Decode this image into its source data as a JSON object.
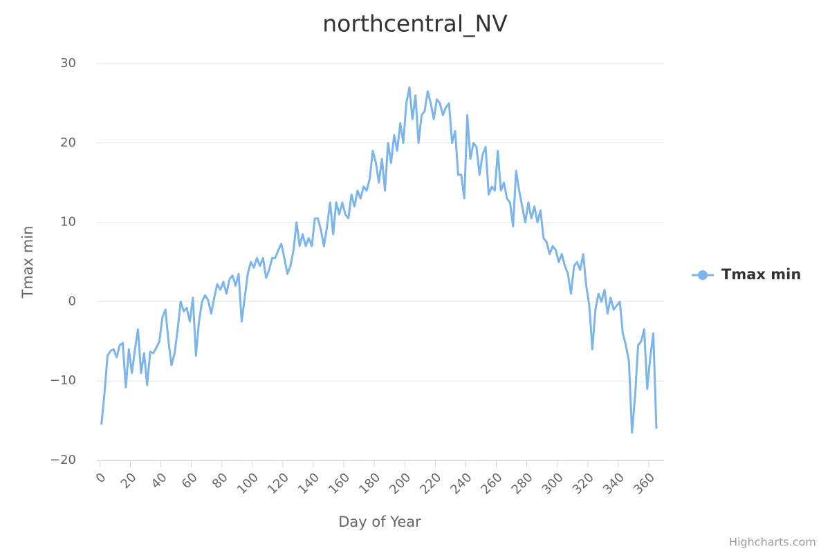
{
  "chart_data": {
    "type": "line",
    "title": "northcentral_NV",
    "x_label": "Day of Year",
    "y_label": "Tmax min",
    "credit": "Highcharts.com",
    "xlim": [
      -2,
      370
    ],
    "xticks": [
      0,
      20,
      40,
      60,
      80,
      100,
      120,
      140,
      160,
      180,
      200,
      220,
      240,
      260,
      280,
      300,
      320,
      340,
      360
    ],
    "ylim": [
      -20,
      30
    ],
    "yticks": [
      {
        "value": -20,
        "label": "−20"
      },
      {
        "value": -10,
        "label": "−10"
      },
      0,
      10,
      20,
      30
    ],
    "grid": true,
    "legend": "right",
    "x": [
      1,
      3,
      5,
      7,
      9,
      11,
      13,
      15,
      17,
      19,
      21,
      23,
      25,
      27,
      29,
      31,
      33,
      35,
      37,
      39,
      41,
      43,
      45,
      47,
      49,
      51,
      53,
      55,
      57,
      59,
      61,
      63,
      65,
      67,
      69,
      71,
      73,
      75,
      77,
      79,
      81,
      83,
      85,
      87,
      89,
      91,
      93,
      95,
      97,
      99,
      101,
      103,
      105,
      107,
      109,
      111,
      113,
      115,
      117,
      119,
      121,
      123,
      125,
      127,
      129,
      131,
      133,
      135,
      137,
      139,
      141,
      143,
      145,
      147,
      149,
      151,
      153,
      155,
      157,
      159,
      161,
      163,
      165,
      167,
      169,
      171,
      173,
      175,
      177,
      179,
      181,
      183,
      185,
      187,
      189,
      191,
      193,
      195,
      197,
      199,
      201,
      203,
      205,
      207,
      209,
      211,
      213,
      215,
      217,
      219,
      221,
      223,
      225,
      227,
      229,
      231,
      233,
      235,
      237,
      239,
      241,
      243,
      245,
      247,
      249,
      251,
      253,
      255,
      257,
      259,
      261,
      263,
      265,
      267,
      269,
      271,
      273,
      275,
      277,
      279,
      281,
      283,
      285,
      287,
      289,
      291,
      293,
      295,
      297,
      299,
      301,
      303,
      305,
      307,
      309,
      311,
      313,
      315,
      317,
      319,
      321,
      323,
      325,
      327,
      329,
      331,
      333,
      335,
      337,
      339,
      341,
      343,
      345,
      347,
      349,
      351,
      353,
      355,
      357,
      359,
      361,
      363,
      365
    ],
    "series": [
      {
        "name": "Tmax min",
        "color": "#7cb5ec",
        "values": [
          -15.5,
          -11.6,
          -6.8,
          -6.2,
          -6,
          -7,
          -5.5,
          -5.2,
          -10.8,
          -6,
          -9,
          -6,
          -3.5,
          -9,
          -6.5,
          -10.5,
          -6.3,
          -6.5,
          -5.8,
          -5,
          -2,
          -1,
          -5,
          -8,
          -6.5,
          -3.5,
          0,
          -1.2,
          -0.8,
          -2.5,
          0.5,
          -6.8,
          -2.5,
          0,
          0.8,
          0.2,
          -1.5,
          0.5,
          2.2,
          1.5,
          2.5,
          1,
          2.8,
          3.3,
          2,
          3.5,
          -2.5,
          0.5,
          3.5,
          5,
          4.3,
          5.5,
          4.5,
          5.5,
          3,
          4,
          5.5,
          5.5,
          6.5,
          7.3,
          5.5,
          3.5,
          4.5,
          6.5,
          10,
          7,
          8.5,
          7,
          8,
          7,
          10.5,
          10.5,
          9,
          7,
          9.5,
          12.5,
          8.5,
          12.5,
          11,
          12.5,
          11,
          10.5,
          13.5,
          12,
          14,
          13,
          14.5,
          14,
          15.5,
          19,
          17.5,
          15,
          18,
          14,
          20,
          17.5,
          21,
          19,
          22.5,
          20,
          25,
          27,
          23,
          26,
          20,
          23.5,
          24,
          26.5,
          25,
          23,
          25.5,
          25,
          23.5,
          24.5,
          25,
          20,
          21.5,
          16,
          16,
          13,
          23.5,
          18,
          20,
          19.5,
          16,
          18.5,
          19.5,
          13.5,
          14.5,
          14,
          19,
          14,
          15,
          13,
          12.5,
          9.5,
          16.5,
          14,
          12,
          10,
          12.5,
          10.5,
          12,
          10,
          11.5,
          8,
          7.5,
          6,
          7,
          6.5,
          5,
          6,
          4.5,
          3.5,
          1,
          4.5,
          5,
          4,
          6,
          2,
          -0.5,
          -6,
          -1,
          1,
          0,
          1.5,
          -1.5,
          0.5,
          -1,
          -0.5,
          0,
          -4,
          -5.5,
          -7.5,
          -16.5,
          -12,
          -5.5,
          -5,
          -3.5,
          -11,
          -7,
          -4,
          -16
        ]
      }
    ]
  }
}
